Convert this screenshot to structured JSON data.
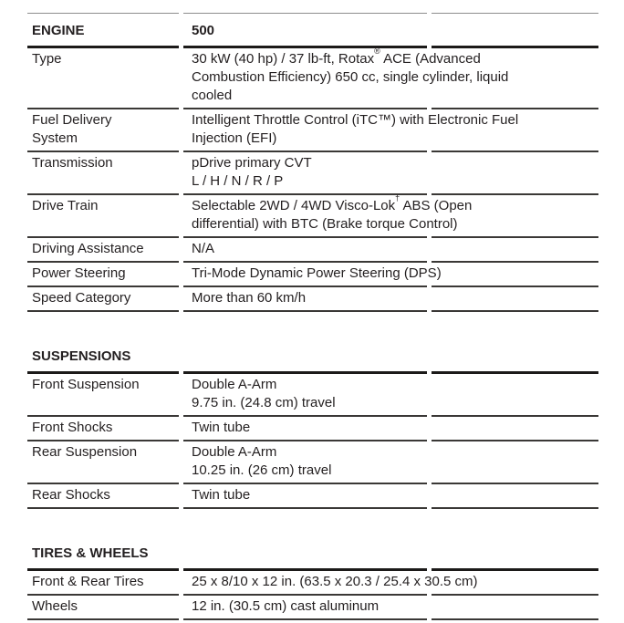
{
  "page": {
    "background_color": "#ffffff",
    "text_color": "#231f20",
    "rule_color_thick": "#1c1a19",
    "rule_color_thin": "#3a3836"
  },
  "sections": [
    {
      "title": "ENGINE",
      "column_header": "500",
      "rows": [
        {
          "label": "Type",
          "value": "30 kW (40 hp) / 37 lb-ft, Rotax® ACE (Advanced\nCombustion Efficiency) 650 cc, single cylinder, liquid\ncooled"
        },
        {
          "label": "Fuel Delivery\nSystem",
          "value": "Intelligent Throttle Control (iTC™) with Electronic Fuel\nInjection (EFI)"
        },
        {
          "label": "Transmission",
          "value": "pDrive primary CVT\nL / H / N / R / P"
        },
        {
          "label": "Drive Train",
          "value": "Selectable 2WD / 4WD Visco-Lok† ABS (Open\ndifferential) with BTC (Brake torque Control)"
        },
        {
          "label": "Driving Assistance",
          "value": "N/A"
        },
        {
          "label": "Power Steering",
          "value": "Tri-Mode Dynamic Power Steering (DPS)"
        },
        {
          "label": "Speed Category",
          "value": "More than 60 km/h"
        }
      ]
    },
    {
      "title": "SUSPENSIONS",
      "column_header": "",
      "rows": [
        {
          "label": "Front Suspension",
          "value": "Double A-Arm\n9.75 in. (24.8 cm) travel"
        },
        {
          "label": "Front Shocks",
          "value": "Twin tube"
        },
        {
          "label": "Rear Suspension",
          "value": "Double A-Arm\n10.25 in. (26 cm) travel"
        },
        {
          "label": "Rear Shocks",
          "value": "Twin tube"
        }
      ]
    },
    {
      "title": "TIRES & WHEELS",
      "column_header": "",
      "rows": [
        {
          "label": "Front & Rear Tires",
          "value": "25 x 8/10 x 12 in. (63.5 x 20.3 / 25.4 x 30.5 cm)"
        },
        {
          "label": "Wheels",
          "value": "12 in. (30.5 cm) cast aluminum"
        }
      ]
    }
  ]
}
